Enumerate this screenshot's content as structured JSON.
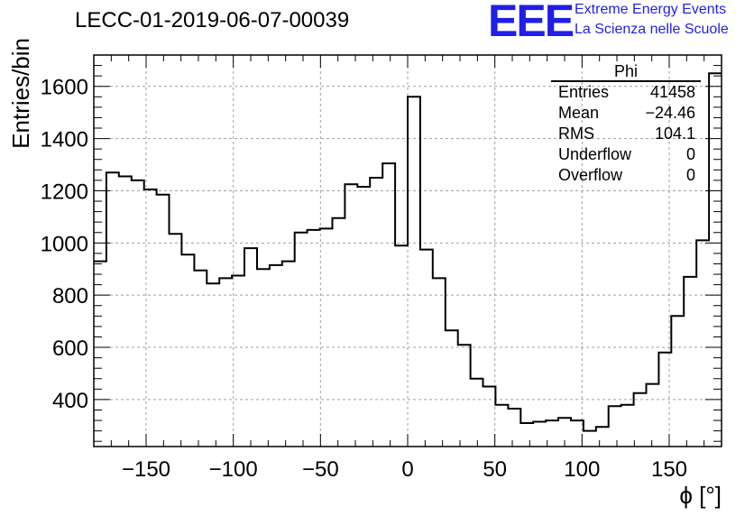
{
  "chart_data": {
    "type": "bar",
    "title": "LECC-01-2019-06-07-00039",
    "xlabel": "ϕ [°]",
    "ylabel": "Entries/bin",
    "xlim": [
      -180,
      180
    ],
    "ylim": [
      220,
      1720
    ],
    "bin_width": 7.2,
    "xticks": [
      -150,
      -100,
      -50,
      0,
      50,
      100,
      150
    ],
    "yticks": [
      400,
      600,
      800,
      1000,
      1200,
      1400,
      1600
    ],
    "grid": true,
    "legend": "none",
    "series": [
      {
        "values": [
          930,
          1270,
          1255,
          1240,
          1205,
          1185,
          1035,
          955,
          895,
          845,
          865,
          875,
          980,
          900,
          915,
          930,
          1040,
          1050,
          1055,
          1095,
          1225,
          1215,
          1250,
          1305,
          990,
          1560,
          975,
          865,
          665,
          610,
          480,
          450,
          380,
          365,
          310,
          315,
          320,
          330,
          320,
          280,
          295,
          375,
          380,
          425,
          460,
          580,
          720,
          870,
          1010,
          1650
        ]
      }
    ]
  },
  "stats_box": {
    "title": "Phi",
    "rows": [
      {
        "label": "Entries",
        "value": "41458"
      },
      {
        "label": "Mean",
        "value": "−24.46"
      },
      {
        "label": "RMS",
        "value": "104.1"
      },
      {
        "label": "Underflow",
        "value": "0"
      },
      {
        "label": "Overflow",
        "value": "0"
      }
    ]
  },
  "logo": {
    "mark": "EEE",
    "line1": "Extreme Energy Events",
    "line2": "La Scienza nelle Scuole"
  },
  "colors": {
    "logo": "#1f1fe6",
    "line": "#000000",
    "grid": "#a0a0a0"
  }
}
